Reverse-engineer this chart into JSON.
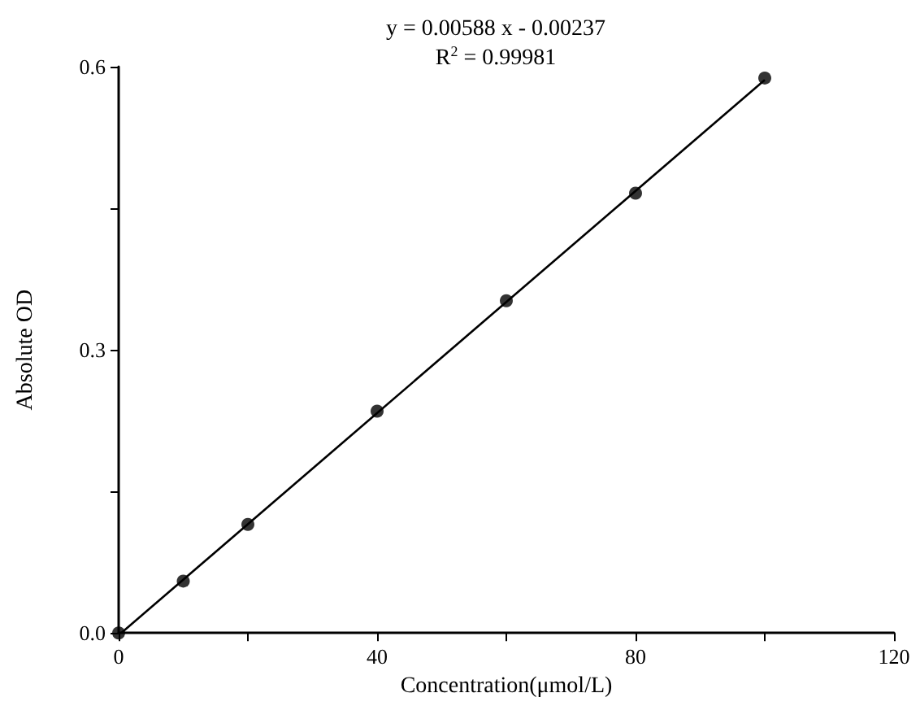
{
  "chart_data": {
    "type": "scatter",
    "xlabel": "Concentration(μmol/L)",
    "ylabel": "Absolute OD",
    "annotations": [
      "y = 0.00588 x - 0.00237",
      "R$^{2}$ = 0.99981"
    ],
    "x": [
      0,
      10,
      20,
      40,
      60,
      80,
      100
    ],
    "series": [
      {
        "color": "#000000",
        "marker": "circle",
        "values": [
          0,
          0.055,
          0.115,
          0.235,
          0.352,
          0.466,
          0.588
        ]
      },
      {
        "type": "line",
        "color": "#000000",
        "marker": "none",
        "line_style": "solid",
        "x": [
          0.4,
          100
        ],
        "values": [
          0,
          0.586
        ]
      }
    ],
    "xlim": [
      0,
      120
    ],
    "xticks": [
      0,
      {
        "value": 20,
        "label": null
      },
      40,
      {
        "value": 60,
        "label": null
      },
      80,
      {
        "value": 100,
        "label": null
      },
      120
    ],
    "ylim": [
      0,
      0.6
    ],
    "yticks": [
      {
        "value": 0,
        "label": "0.0"
      },
      {
        "value": 0.15,
        "label": null
      },
      0.3,
      {
        "value": 0.45,
        "label": null
      },
      0.6
    ],
    "grid": false
  }
}
